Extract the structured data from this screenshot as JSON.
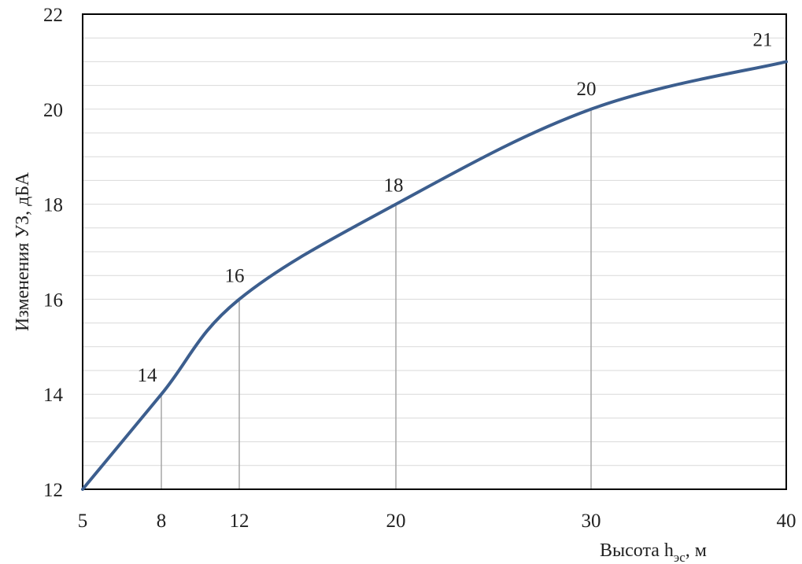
{
  "chart_data": {
    "type": "line",
    "xlabel": "Высота h",
    "xlabel_sub": "эс",
    "xlabel_unit": ", м",
    "ylabel": "Изменения УЗ, дБА",
    "ylim": [
      12,
      22
    ],
    "y_ticks": [
      12,
      14,
      16,
      18,
      20,
      22
    ],
    "x_ticks": [
      5,
      8,
      12,
      20,
      30,
      40
    ],
    "x_scale": "categorical-irregular",
    "x": [
      5,
      8,
      12,
      20,
      30,
      40
    ],
    "y": [
      12,
      14,
      16,
      18,
      20,
      21
    ],
    "data_labels": [
      "",
      "14",
      "16",
      "18",
      "20",
      "21"
    ],
    "grid": "horizontal minor lines, vertical drop lines at labeled points",
    "legend": "none",
    "line_color": "#3C5E8E",
    "grid_color": "#D9D9D9",
    "drop_line_color": "#A6A6A6",
    "frame_color": "#000000"
  }
}
